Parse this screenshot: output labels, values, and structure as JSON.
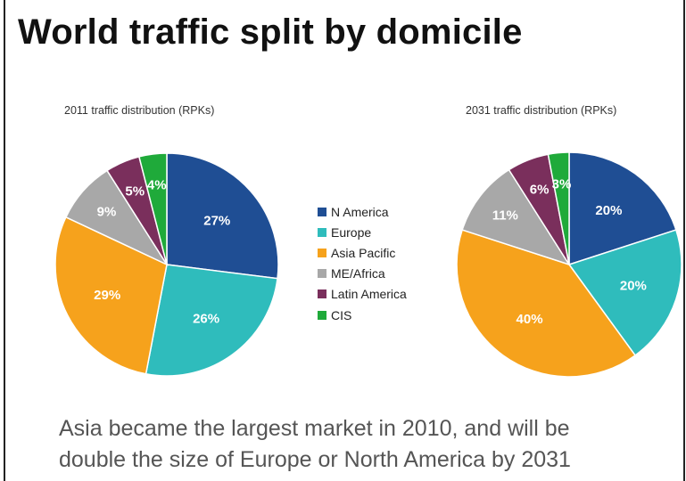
{
  "slide": {
    "title": "World traffic split by domicile",
    "footer": {
      "line1": "Asia became the largest market in 2010, and will be",
      "line2": "double the size of Europe or North America by 2031"
    }
  },
  "legend": {
    "items": [
      {
        "label": "N America",
        "color": "#1f4e94"
      },
      {
        "label": "Europe",
        "color": "#2fbcbc"
      },
      {
        "label": "Asia Pacific",
        "color": "#f6a21c"
      },
      {
        "label": "ME/Africa",
        "color": "#a8a8a8"
      },
      {
        "label": "Latin America",
        "color": "#7a2f5c"
      },
      {
        "label": "CIS",
        "color": "#1faa3a"
      }
    ]
  },
  "chart_data": [
    {
      "type": "pie",
      "title": "2011 traffic distribution (RPKs)",
      "categories": [
        "N America",
        "Europe",
        "Asia Pacific",
        "ME/Africa",
        "Latin America",
        "CIS"
      ],
      "values": [
        27,
        26,
        29,
        9,
        5,
        4
      ],
      "labels": [
        "27%",
        "26%",
        "29%",
        "9%",
        "5%",
        "4%"
      ],
      "legend_position": "center"
    },
    {
      "type": "pie",
      "title": "2031 traffic distribution (RPKs)",
      "categories": [
        "N America",
        "Europe",
        "Asia Pacific",
        "ME/Africa",
        "Latin America",
        "CIS"
      ],
      "values": [
        20,
        20,
        40,
        11,
        6,
        3
      ],
      "labels": [
        "20%",
        "20%",
        "40%",
        "11%",
        "6%",
        "3%"
      ],
      "legend_position": "center"
    }
  ]
}
